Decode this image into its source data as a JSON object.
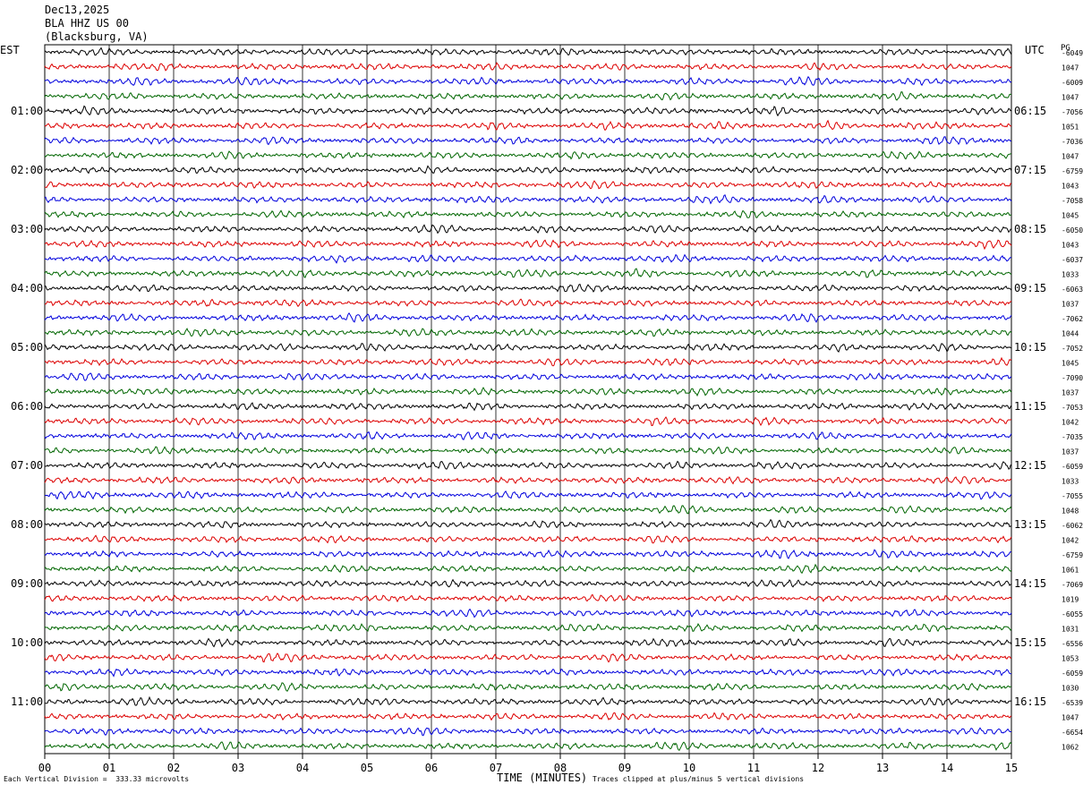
{
  "header": {
    "date": "Dec13,2025",
    "station": "BLA HHZ US 00",
    "location": "(Blacksburg, VA)"
  },
  "left_timezone": "EST",
  "right_timezone": "UTC",
  "right_header": "PG",
  "footer": {
    "left": "Each Vertical Division =  333.33 microvolts",
    "center": "TIME (MINUTES)",
    "right": "Traces clipped at plus/minus 5 vertical divisions"
  },
  "colors": {
    "trace_cycle": [
      "#000000",
      "#dd0000",
      "#0000dd",
      "#006600"
    ],
    "grid": "#000000"
  },
  "chart_data": {
    "type": "line",
    "title": "BLA HHZ US 00 (Blacksburg, VA) Dec13,2025",
    "xlabel": "TIME (MINUTES)",
    "xlim": [
      0,
      15
    ],
    "x_ticks": [
      "00",
      "01",
      "02",
      "03",
      "04",
      "05",
      "06",
      "07",
      "08",
      "09",
      "10",
      "11",
      "12",
      "13",
      "14",
      "15"
    ],
    "traces_per_hour": 4,
    "left_hour_labels": [
      "01:00",
      "02:00",
      "03:00",
      "04:00",
      "05:00",
      "06:00",
      "07:00",
      "08:00",
      "09:00",
      "10:00",
      "11:00"
    ],
    "right_hour_labels": [
      "06:15",
      "07:15",
      "08:15",
      "09:15",
      "10:15",
      "11:15",
      "12:15",
      "13:15",
      "14:15",
      "15:15",
      "16:15"
    ],
    "trace_offsets": [
      "-6049",
      "1047",
      "-6009",
      "1047",
      "-7056",
      "1051",
      "-7036",
      "1047",
      "-6759",
      "1043",
      "-7058",
      "1045",
      "-6050",
      "1043",
      "-6037",
      "1033",
      "-6063",
      "1037",
      "-7062",
      "1044",
      "-7052",
      "1045",
      "-7090",
      "1037",
      "-7053",
      "1042",
      "-7035",
      "1037",
      "-6059",
      "1033",
      "-7055",
      "1048",
      "-6062",
      "1042",
      "-6759",
      "1061",
      "-7069",
      "1019",
      "-6055",
      "1031",
      "-6556",
      "1053",
      "-6059",
      "1030",
      "-6539",
      "1047",
      "-6654",
      "1062"
    ]
  }
}
